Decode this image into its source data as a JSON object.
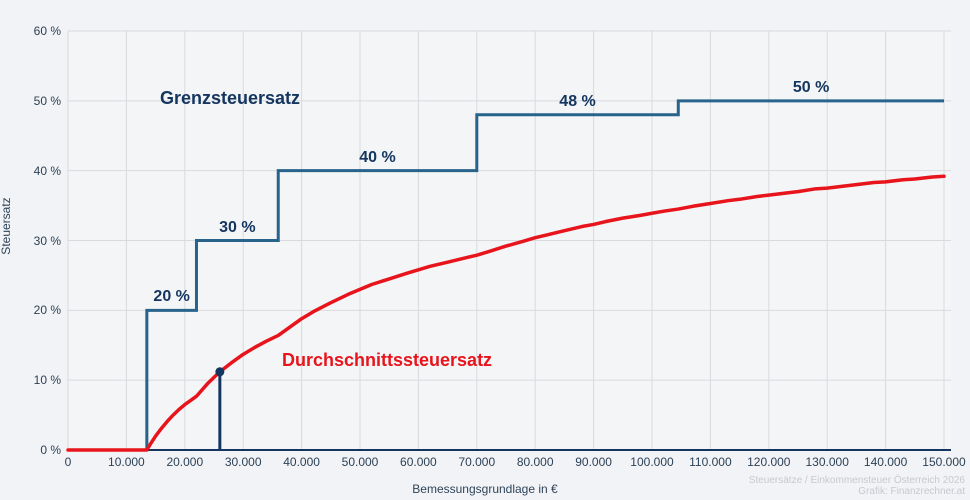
{
  "colors": {
    "page_background": "#f2f3f6",
    "plot_background": "#f4f5f7",
    "gridline": "#d8dade",
    "axis_line": "#14355e",
    "marginal_line": "#28638c",
    "average_line": "#e8141c",
    "annotation_navy": "#14355e",
    "tick_text": "#2c4155",
    "watermark_text": "#c6c9ce"
  },
  "labels": {
    "y_axis_title": "Steuersatz",
    "x_axis_title": "Bemessungsgrundlage in €",
    "series_marginal": "Grenzsteuersatz",
    "series_average": "Durchschnittssteuersatz",
    "watermark_line1": "Steuersätze / Einkommensteuer Österreich 2026",
    "watermark_line2": "Grafik: Finanzrechner.at"
  },
  "chart_data": {
    "type": "line",
    "title": "",
    "xlabel": "Bemessungsgrundlage in €",
    "ylabel": "Steuersatz",
    "xlim": [
      0,
      150000
    ],
    "ylim": [
      0,
      60
    ],
    "grid": true,
    "legend_position": "inline-labels",
    "x_ticks": [
      0,
      10000,
      20000,
      30000,
      40000,
      50000,
      60000,
      70000,
      80000,
      90000,
      100000,
      110000,
      120000,
      130000,
      140000,
      150000
    ],
    "x_tick_labels": [
      "0",
      "10.000",
      "20.000",
      "30.000",
      "40.000",
      "50.000",
      "60.000",
      "70.000",
      "80.000",
      "90.000",
      "100.000",
      "110.000",
      "120.000",
      "130.000",
      "140.000",
      "150.000"
    ],
    "y_ticks": [
      0,
      10,
      20,
      30,
      40,
      50,
      60
    ],
    "y_tick_labels": [
      "0 %",
      "10 %",
      "20 %",
      "30 %",
      "40 %",
      "50 %",
      "60 %"
    ],
    "series": [
      {
        "name": "Grenzsteuersatz",
        "type": "step",
        "color": "#28638c",
        "brackets": [
          {
            "from": 0,
            "to": 13500,
            "rate": 0,
            "label": ""
          },
          {
            "from": 13500,
            "to": 22000,
            "rate": 20,
            "label": "20 %"
          },
          {
            "from": 22000,
            "to": 36000,
            "rate": 30,
            "label": "30 %"
          },
          {
            "from": 36000,
            "to": 70000,
            "rate": 40,
            "label": "40 %"
          },
          {
            "from": 70000,
            "to": 104500,
            "rate": 48,
            "label": "48 %"
          },
          {
            "from": 104500,
            "to": 150000,
            "rate": 50,
            "label": "50 %"
          }
        ]
      },
      {
        "name": "Durchschnittssteuersatz",
        "type": "line",
        "color": "#e8141c",
        "points": [
          [
            0,
            0
          ],
          [
            13500,
            0
          ],
          [
            14000,
            0.7
          ],
          [
            15000,
            2.0
          ],
          [
            16000,
            3.1
          ],
          [
            17000,
            4.1
          ],
          [
            18000,
            5.0
          ],
          [
            19000,
            5.8
          ],
          [
            20000,
            6.5
          ],
          [
            21000,
            7.1
          ],
          [
            22000,
            7.7
          ],
          [
            24000,
            9.6
          ],
          [
            26000,
            11.2
          ],
          [
            28000,
            12.5
          ],
          [
            30000,
            13.7
          ],
          [
            32000,
            14.7
          ],
          [
            34000,
            15.6
          ],
          [
            36000,
            16.4
          ],
          [
            38000,
            17.6
          ],
          [
            40000,
            18.8
          ],
          [
            42000,
            19.8
          ],
          [
            45000,
            21.1
          ],
          [
            48000,
            22.3
          ],
          [
            50000,
            23.0
          ],
          [
            52000,
            23.7
          ],
          [
            55000,
            24.5
          ],
          [
            58000,
            25.3
          ],
          [
            60000,
            25.8
          ],
          [
            62000,
            26.3
          ],
          [
            65000,
            26.9
          ],
          [
            68000,
            27.5
          ],
          [
            70000,
            27.9
          ],
          [
            72000,
            28.4
          ],
          [
            75000,
            29.2
          ],
          [
            78000,
            29.9
          ],
          [
            80000,
            30.4
          ],
          [
            82000,
            30.8
          ],
          [
            85000,
            31.4
          ],
          [
            88000,
            32.0
          ],
          [
            90000,
            32.3
          ],
          [
            92000,
            32.7
          ],
          [
            95000,
            33.2
          ],
          [
            98000,
            33.6
          ],
          [
            100000,
            33.9
          ],
          [
            102000,
            34.2
          ],
          [
            104500,
            34.5
          ],
          [
            107000,
            34.9
          ],
          [
            110000,
            35.3
          ],
          [
            113000,
            35.7
          ],
          [
            115000,
            35.9
          ],
          [
            118000,
            36.3
          ],
          [
            120000,
            36.5
          ],
          [
            123000,
            36.8
          ],
          [
            125000,
            37.0
          ],
          [
            128000,
            37.4
          ],
          [
            130000,
            37.5
          ],
          [
            133000,
            37.8
          ],
          [
            135000,
            38.0
          ],
          [
            138000,
            38.3
          ],
          [
            140000,
            38.4
          ],
          [
            143000,
            38.7
          ],
          [
            145000,
            38.8
          ],
          [
            148000,
            39.1
          ],
          [
            150000,
            39.2
          ]
        ]
      }
    ],
    "marker_point": {
      "series": "Durchschnittssteuersatz",
      "x": 26000,
      "y": 11.2
    }
  }
}
